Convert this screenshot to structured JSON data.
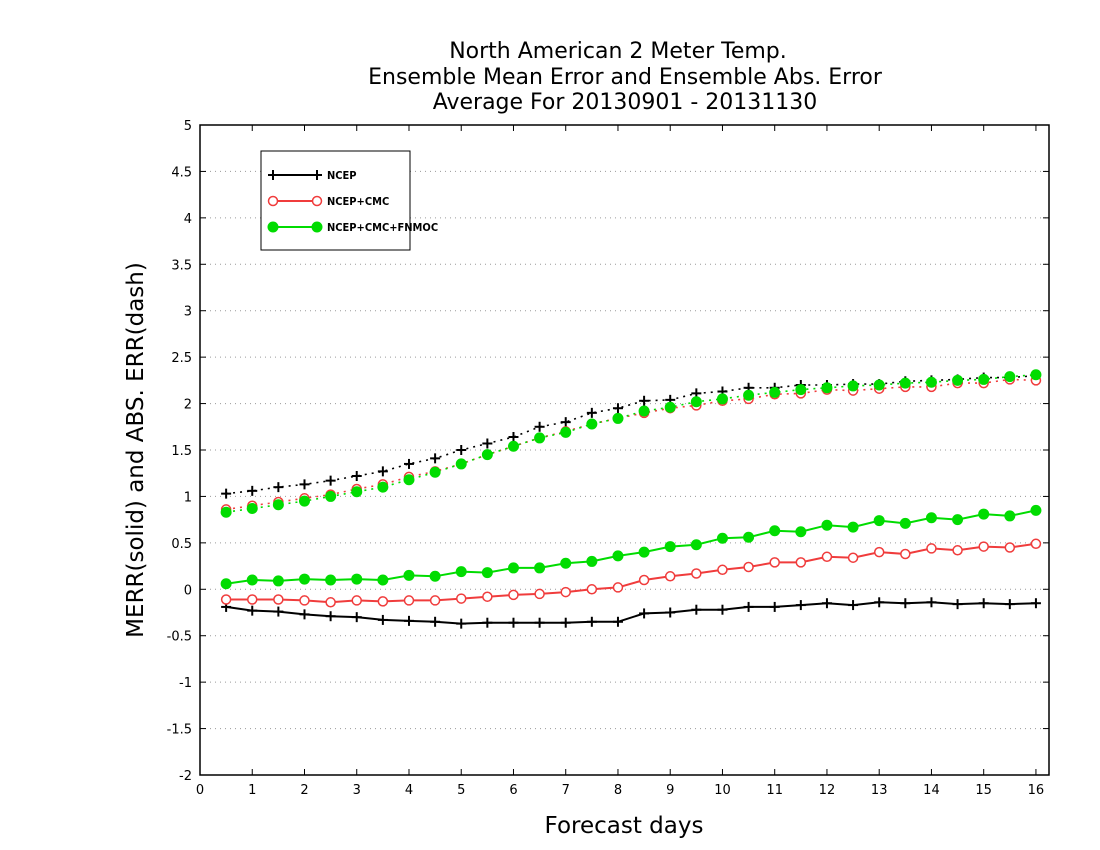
{
  "chart_data": {
    "type": "line",
    "title": [
      "North American 2 Meter Temp.",
      "Ensemble Mean Error and Ensemble Abs. Error",
      "Average For 20130901 - 20131130"
    ],
    "xlabel": "Forecast days",
    "ylabel": "MERR(solid) and ABS. ERR(dash)",
    "xlim": [
      0,
      16.25
    ],
    "ylim": [
      -2,
      5
    ],
    "x_ticks": [
      "0",
      "1",
      "2",
      "3",
      "4",
      "5",
      "6",
      "7",
      "8",
      "9",
      "10",
      "11",
      "12",
      "13",
      "14",
      "15",
      "16"
    ],
    "y_ticks": [
      "-2",
      "-1.5",
      "-1",
      "-0.5",
      "0",
      "0.5",
      "1",
      "1.5",
      "2",
      "2.5",
      "3",
      "3.5",
      "4",
      "4.5",
      "5"
    ],
    "grid": "horizontal dotted",
    "legend_position": "top-left",
    "x": [
      0.5,
      1,
      1.5,
      2,
      2.5,
      3,
      3.5,
      4,
      4.5,
      5,
      5.5,
      6,
      6.5,
      7,
      7.5,
      8,
      8.5,
      9,
      9.5,
      10,
      10.5,
      11,
      11.5,
      12,
      12.5,
      13,
      13.5,
      14,
      14.5,
      15,
      15.5,
      16
    ],
    "series": [
      {
        "name": "NCEP",
        "color": "#000000",
        "marker": "plus",
        "mean_error": [
          -0.19,
          -0.23,
          -0.24,
          -0.27,
          -0.29,
          -0.3,
          -0.33,
          -0.34,
          -0.35,
          -0.37,
          -0.36,
          -0.36,
          -0.36,
          -0.36,
          -0.35,
          -0.35,
          -0.26,
          -0.25,
          -0.22,
          -0.22,
          -0.19,
          -0.19,
          -0.17,
          -0.15,
          -0.17,
          -0.14,
          -0.15,
          -0.14,
          -0.16,
          -0.15,
          -0.16,
          -0.15
        ],
        "abs_error": [
          1.03,
          1.06,
          1.1,
          1.13,
          1.17,
          1.22,
          1.27,
          1.35,
          1.41,
          1.5,
          1.57,
          1.64,
          1.75,
          1.8,
          1.9,
          1.95,
          2.03,
          2.04,
          2.11,
          2.13,
          2.17,
          2.17,
          2.2,
          2.2,
          2.21,
          2.21,
          2.24,
          2.25,
          2.26,
          2.28,
          2.28,
          2.3
        ]
      },
      {
        "name": "NCEP+CMC",
        "color": "#f03c3c",
        "marker": "open-circle",
        "mean_error": [
          -0.11,
          -0.11,
          -0.11,
          -0.12,
          -0.14,
          -0.12,
          -0.13,
          -0.12,
          -0.12,
          -0.1,
          -0.08,
          -0.06,
          -0.05,
          -0.03,
          0.0,
          0.02,
          0.1,
          0.14,
          0.17,
          0.21,
          0.24,
          0.29,
          0.29,
          0.35,
          0.34,
          0.4,
          0.38,
          0.44,
          0.42,
          0.46,
          0.45,
          0.49
        ],
        "abs_error": [
          0.86,
          0.9,
          0.94,
          0.98,
          1.02,
          1.08,
          1.13,
          1.21,
          1.27,
          1.35,
          1.45,
          1.54,
          1.63,
          1.7,
          1.78,
          1.84,
          1.9,
          1.95,
          1.98,
          2.03,
          2.05,
          2.1,
          2.11,
          2.15,
          2.14,
          2.16,
          2.18,
          2.18,
          2.22,
          2.22,
          2.26,
          2.25
        ]
      },
      {
        "name": "NCEP+CMC+FNMOC",
        "color": "#00dc00",
        "marker": "filled-circle",
        "mean_error": [
          0.06,
          0.1,
          0.09,
          0.11,
          0.1,
          0.11,
          0.1,
          0.15,
          0.14,
          0.19,
          0.18,
          0.23,
          0.23,
          0.28,
          0.3,
          0.36,
          0.4,
          0.46,
          0.48,
          0.55,
          0.56,
          0.63,
          0.62,
          0.69,
          0.67,
          0.74,
          0.71,
          0.77,
          0.75,
          0.81,
          0.79,
          0.85
        ],
        "abs_error": [
          0.83,
          0.87,
          0.91,
          0.95,
          1.0,
          1.05,
          1.1,
          1.18,
          1.26,
          1.35,
          1.45,
          1.54,
          1.63,
          1.69,
          1.78,
          1.84,
          1.92,
          1.96,
          2.02,
          2.05,
          2.09,
          2.12,
          2.15,
          2.17,
          2.19,
          2.2,
          2.22,
          2.23,
          2.25,
          2.26,
          2.29,
          2.31
        ]
      }
    ]
  }
}
